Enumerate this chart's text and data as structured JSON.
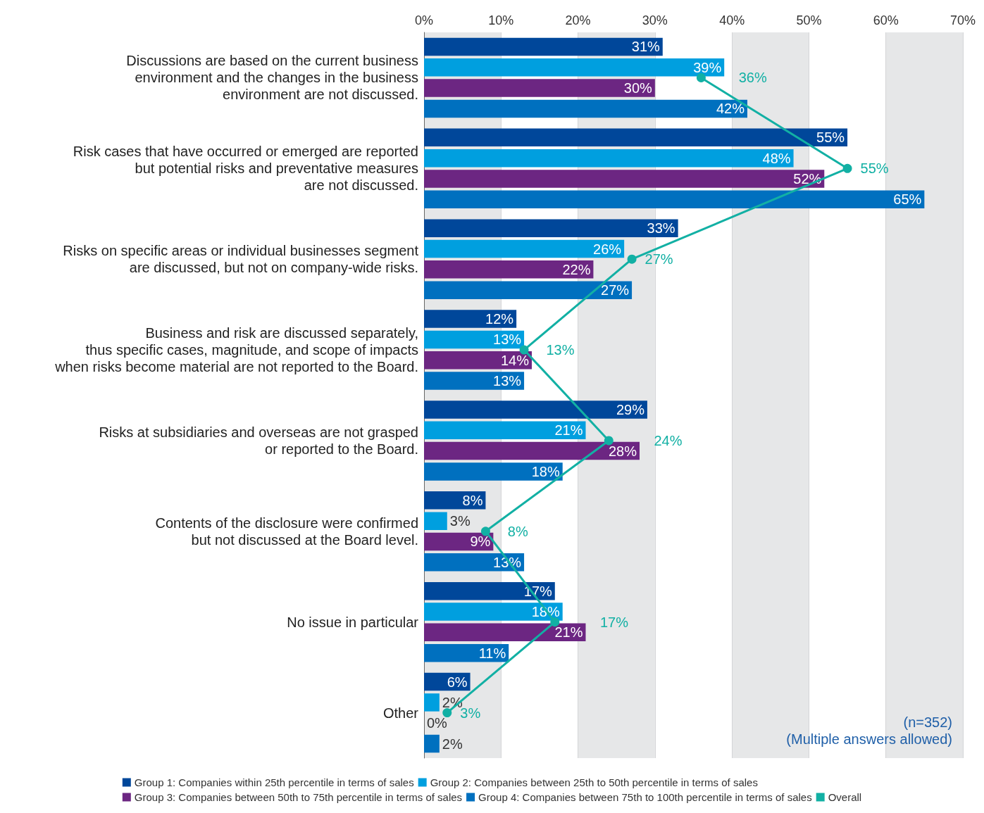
{
  "chart_data": {
    "type": "bar",
    "orientation": "horizontal",
    "categories": [
      "Discussions are based on the current business\nenvironment and the changes in the business\nenvironment are not discussed.",
      "Risk cases that have occurred or emerged are reported\nbut potential risks and preventative measures\nare not discussed.",
      "Risks on specific areas or individual businesses segment\nare discussed, but not on company-wide risks.",
      "Business and risk are discussed separately,\nthus specific cases, magnitude, and scope of impacts\nwhen risks become material are not reported to the Board.",
      "Risks at subsidiaries and overseas are not grasped\nor reported to the Board.",
      "Contents of the disclosure were confirmed\nbut not discussed at the Board level.",
      "No issue in particular",
      "Other"
    ],
    "series": [
      {
        "name": "Group 1: Companies within 25th percentile in terms of sales",
        "color": "#00479a",
        "values": [
          31,
          55,
          33,
          12,
          29,
          8,
          17,
          6
        ],
        "value_labels": [
          "31%",
          "55%",
          "33%",
          "12%",
          "29%",
          "8%",
          "17%",
          "6%"
        ]
      },
      {
        "name": "Group 2: Companies between 25th to 50th percentile in terms of sales",
        "color": "#009fdf",
        "values": [
          39,
          48,
          26,
          13,
          21,
          3,
          18,
          2
        ],
        "value_labels": [
          "39%",
          "48%",
          "26%",
          "13%",
          "21%",
          "3%",
          "18%",
          "2%"
        ]
      },
      {
        "name": "Group 3: Companies between 50th to 75th percentile in terms of sales",
        "color": "#6c2682",
        "values": [
          30,
          52,
          22,
          14,
          28,
          9,
          21,
          0
        ],
        "value_labels": [
          "30%",
          "52%",
          "22%",
          "14%",
          "28%",
          "9%",
          "21%",
          "0%"
        ]
      },
      {
        "name": "Group 4: Companies between 75th to 100th percentile in terms of sales",
        "color": "#0070bf",
        "values": [
          42,
          65,
          27,
          13,
          18,
          13,
          11,
          2
        ],
        "value_labels": [
          "42%",
          "65%",
          "27%",
          "13%",
          "18%",
          "13%",
          "11%",
          "2%"
        ]
      },
      {
        "name": "Overall",
        "type": "line",
        "color": "#12b0a4",
        "marker": "circle",
        "values": [
          36,
          55,
          27,
          13,
          24,
          8,
          17,
          3
        ],
        "value_labels": [
          "36%",
          "55%",
          "27%",
          "13%",
          "24%",
          "8%",
          "17%",
          "3%"
        ]
      }
    ],
    "xlim": [
      0,
      70
    ],
    "xticks": [
      {
        "value": 0,
        "label": "0%"
      },
      {
        "value": 10,
        "label": "10%"
      },
      {
        "value": 20,
        "label": "20%"
      },
      {
        "value": 30,
        "label": "30%"
      },
      {
        "value": 40,
        "label": "40%"
      },
      {
        "value": 50,
        "label": "50%"
      },
      {
        "value": 60,
        "label": "60%"
      },
      {
        "value": 70,
        "label": "70%"
      }
    ],
    "grid": "x",
    "legend": "bottom",
    "annotations": [
      "(n=352)\n(Multiple answers allowed)"
    ]
  }
}
